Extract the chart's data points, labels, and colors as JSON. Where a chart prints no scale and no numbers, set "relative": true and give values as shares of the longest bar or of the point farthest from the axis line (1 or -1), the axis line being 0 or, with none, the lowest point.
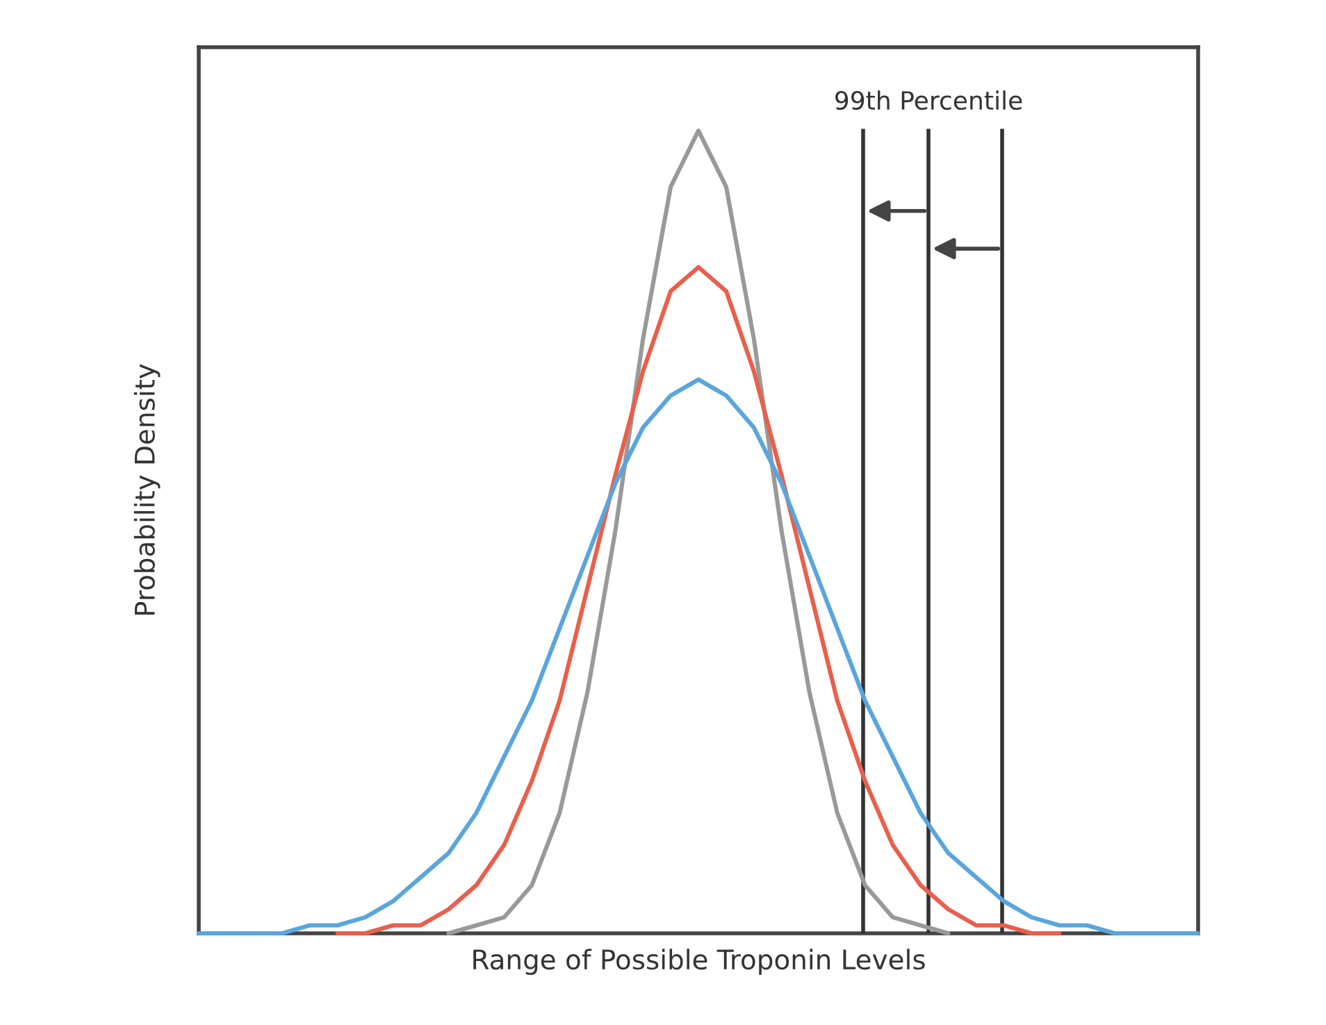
{
  "chart_data": {
    "type": "line",
    "relative": true,
    "xlabel": "Range of Possible Troponin Levels",
    "ylabel": "Probability Density",
    "categories": [
      null,
      null,
      null,
      null,
      null,
      null,
      null,
      null,
      null,
      null,
      null,
      null,
      null,
      null,
      null,
      null,
      null,
      null,
      null,
      null,
      null,
      null,
      null,
      null,
      null,
      null,
      null,
      null,
      null,
      null,
      null,
      null,
      null,
      null,
      null,
      null,
      null
    ],
    "series": [
      {
        "color": "#999999",
        "values": [
          null,
          null,
          null,
          null,
          null,
          null,
          null,
          null,
          null,
          0,
          0.01,
          0.02,
          0.06,
          0.15,
          0.3,
          0.5,
          0.74,
          0.93,
          1,
          0.93,
          0.74,
          0.5,
          0.3,
          0.15,
          0.06,
          0.02,
          0.01,
          0,
          null,
          null,
          null,
          null,
          null,
          null,
          null,
          null,
          null
        ]
      },
      {
        "color": "#e8604c",
        "values": [
          null,
          null,
          null,
          null,
          null,
          0,
          0,
          0.01,
          0.01,
          0.03,
          0.06,
          0.11,
          0.19,
          0.29,
          0.43,
          0.57,
          0.7,
          0.8,
          0.83,
          0.8,
          0.7,
          0.57,
          0.43,
          0.29,
          0.19,
          0.11,
          0.06,
          0.03,
          0.01,
          0.01,
          0,
          0,
          null,
          null,
          null,
          null,
          null
        ]
      },
      {
        "color": "#5aa5dc",
        "values": [
          0,
          0,
          0,
          0,
          0.01,
          0.01,
          0.02,
          0.04,
          0.07,
          0.1,
          0.15,
          0.22,
          0.29,
          0.38,
          0.47,
          0.56,
          0.63,
          0.67,
          0.69,
          0.67,
          0.63,
          0.56,
          0.47,
          0.38,
          0.29,
          0.22,
          0.15,
          0.1,
          0.07,
          0.04,
          0.02,
          0.01,
          0.01,
          0,
          0,
          0,
          0
        ]
      }
    ],
    "annotations": [
      "99th Percentile"
    ],
    "line_style": "solid",
    "marker": "none",
    "legend": false
  }
}
